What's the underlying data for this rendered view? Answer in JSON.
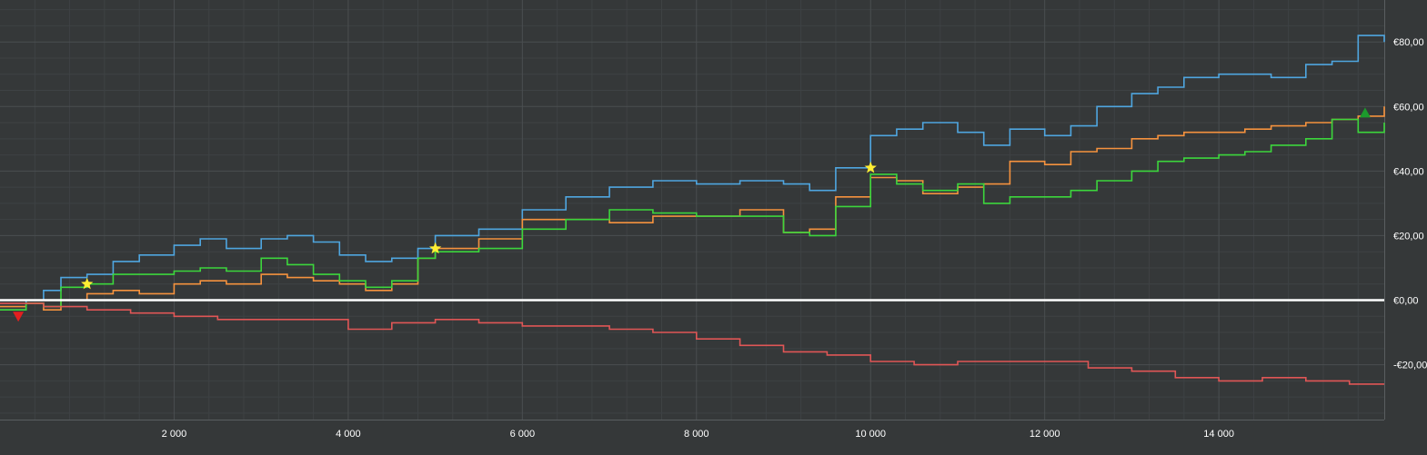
{
  "chart_data": {
    "type": "line",
    "title": "",
    "xlabel": "",
    "ylabel": "",
    "xlim": [
      0,
      15900
    ],
    "ylim": [
      -37,
      93
    ],
    "grid": true,
    "x_ticks": [
      2000,
      4000,
      6000,
      8000,
      10000,
      12000,
      14000
    ],
    "x_tick_labels": [
      "2 000",
      "4 000",
      "6 000",
      "8 000",
      "10 000",
      "12 000",
      "14 000"
    ],
    "y_ticks": [
      -20,
      0,
      20,
      40,
      60,
      80
    ],
    "y_tick_labels": [
      "-€20,00",
      "€0,00",
      "€20,00",
      "€40,00",
      "€60,00",
      "€80,00"
    ],
    "zero_line": 0,
    "colors": {
      "background": "#353839",
      "grid": "#4a4e50",
      "grid_minor": "#3e4244",
      "zero_line": "#ffffff",
      "axis_text": "#ffffff"
    },
    "series": [
      {
        "color": "#4fa6e0",
        "x": [
          0,
          300,
          500,
          700,
          1000,
          1300,
          1600,
          2000,
          2300,
          2600,
          3000,
          3300,
          3600,
          3900,
          4200,
          4500,
          4800,
          5000,
          5500,
          6000,
          6500,
          7000,
          7500,
          8000,
          8500,
          9000,
          9300,
          9600,
          10000,
          10300,
          10600,
          11000,
          11300,
          11600,
          12000,
          12300,
          12600,
          13000,
          13300,
          13600,
          14000,
          14300,
          14600,
          15000,
          15300,
          15600,
          15900
        ],
        "y": [
          -3,
          0,
          3,
          7,
          8,
          12,
          14,
          17,
          19,
          16,
          19,
          20,
          18,
          14,
          12,
          13,
          16,
          20,
          22,
          28,
          32,
          35,
          37,
          36,
          37,
          36,
          34,
          41,
          51,
          53,
          55,
          52,
          48,
          53,
          51,
          54,
          60,
          64,
          66,
          69,
          70,
          70,
          69,
          73,
          74,
          82,
          80
        ]
      },
      {
        "color": "#f5923e",
        "x": [
          0,
          300,
          500,
          700,
          1000,
          1300,
          1600,
          2000,
          2300,
          2600,
          3000,
          3300,
          3600,
          3900,
          4200,
          4500,
          4800,
          5000,
          5500,
          6000,
          6500,
          7000,
          7500,
          8000,
          8500,
          9000,
          9300,
          9600,
          10000,
          10300,
          10600,
          11000,
          11300,
          11600,
          12000,
          12300,
          12600,
          13000,
          13300,
          13600,
          14000,
          14300,
          14600,
          15000,
          15300,
          15600,
          15900
        ],
        "y": [
          -2,
          -1,
          -3,
          0,
          2,
          3,
          2,
          5,
          6,
          5,
          8,
          7,
          6,
          5,
          3,
          5,
          13,
          16,
          19,
          25,
          25,
          24,
          26,
          26,
          28,
          21,
          22,
          32,
          38,
          37,
          33,
          35,
          36,
          43,
          42,
          46,
          47,
          50,
          51,
          52,
          52,
          53,
          54,
          55,
          56,
          57,
          60
        ]
      },
      {
        "color": "#3cd63c",
        "x": [
          0,
          300,
          500,
          700,
          1000,
          1300,
          1600,
          2000,
          2300,
          2600,
          3000,
          3300,
          3600,
          3900,
          4200,
          4500,
          4800,
          5000,
          5500,
          6000,
          6500,
          7000,
          7500,
          8000,
          8500,
          9000,
          9300,
          9600,
          10000,
          10300,
          10600,
          11000,
          11300,
          11600,
          12000,
          12300,
          12600,
          13000,
          13300,
          13600,
          14000,
          14300,
          14600,
          15000,
          15300,
          15600,
          15900
        ],
        "y": [
          -3,
          -1,
          -2,
          4,
          5,
          8,
          8,
          9,
          10,
          9,
          13,
          11,
          8,
          6,
          4,
          6,
          13,
          15,
          16,
          22,
          25,
          28,
          27,
          26,
          26,
          21,
          20,
          29,
          39,
          36,
          34,
          36,
          30,
          32,
          32,
          34,
          37,
          40,
          43,
          44,
          45,
          46,
          48,
          50,
          56,
          52,
          55
        ]
      },
      {
        "color": "#e05656",
        "x": [
          0,
          500,
          1000,
          1500,
          2000,
          2500,
          3000,
          3500,
          4000,
          4500,
          5000,
          5500,
          6000,
          6500,
          7000,
          7500,
          8000,
          8500,
          9000,
          9500,
          10000,
          10500,
          11000,
          11500,
          12000,
          12500,
          13000,
          13500,
          14000,
          14500,
          15000,
          15500,
          15900
        ],
        "y": [
          -1,
          -2,
          -3,
          -4,
          -5,
          -6,
          -6,
          -6,
          -9,
          -7,
          -6,
          -7,
          -8,
          -8,
          -9,
          -10,
          -12,
          -14,
          -16,
          -17,
          -19,
          -20,
          -19,
          -19,
          -19,
          -21,
          -22,
          -24,
          -25,
          -24,
          -25,
          -26,
          -26
        ]
      }
    ],
    "markers": [
      {
        "shape": "triangle-down",
        "color": "#e21f1f",
        "x": 210,
        "y": -5
      },
      {
        "shape": "star",
        "color": "#ffee33",
        "x": 1000,
        "y": 5
      },
      {
        "shape": "star",
        "color": "#ffee33",
        "x": 5000,
        "y": 16
      },
      {
        "shape": "star",
        "color": "#ffee33",
        "x": 10000,
        "y": 41
      },
      {
        "shape": "triangle-up",
        "color": "#1c9a2c",
        "x": 15680,
        "y": 58
      }
    ]
  }
}
